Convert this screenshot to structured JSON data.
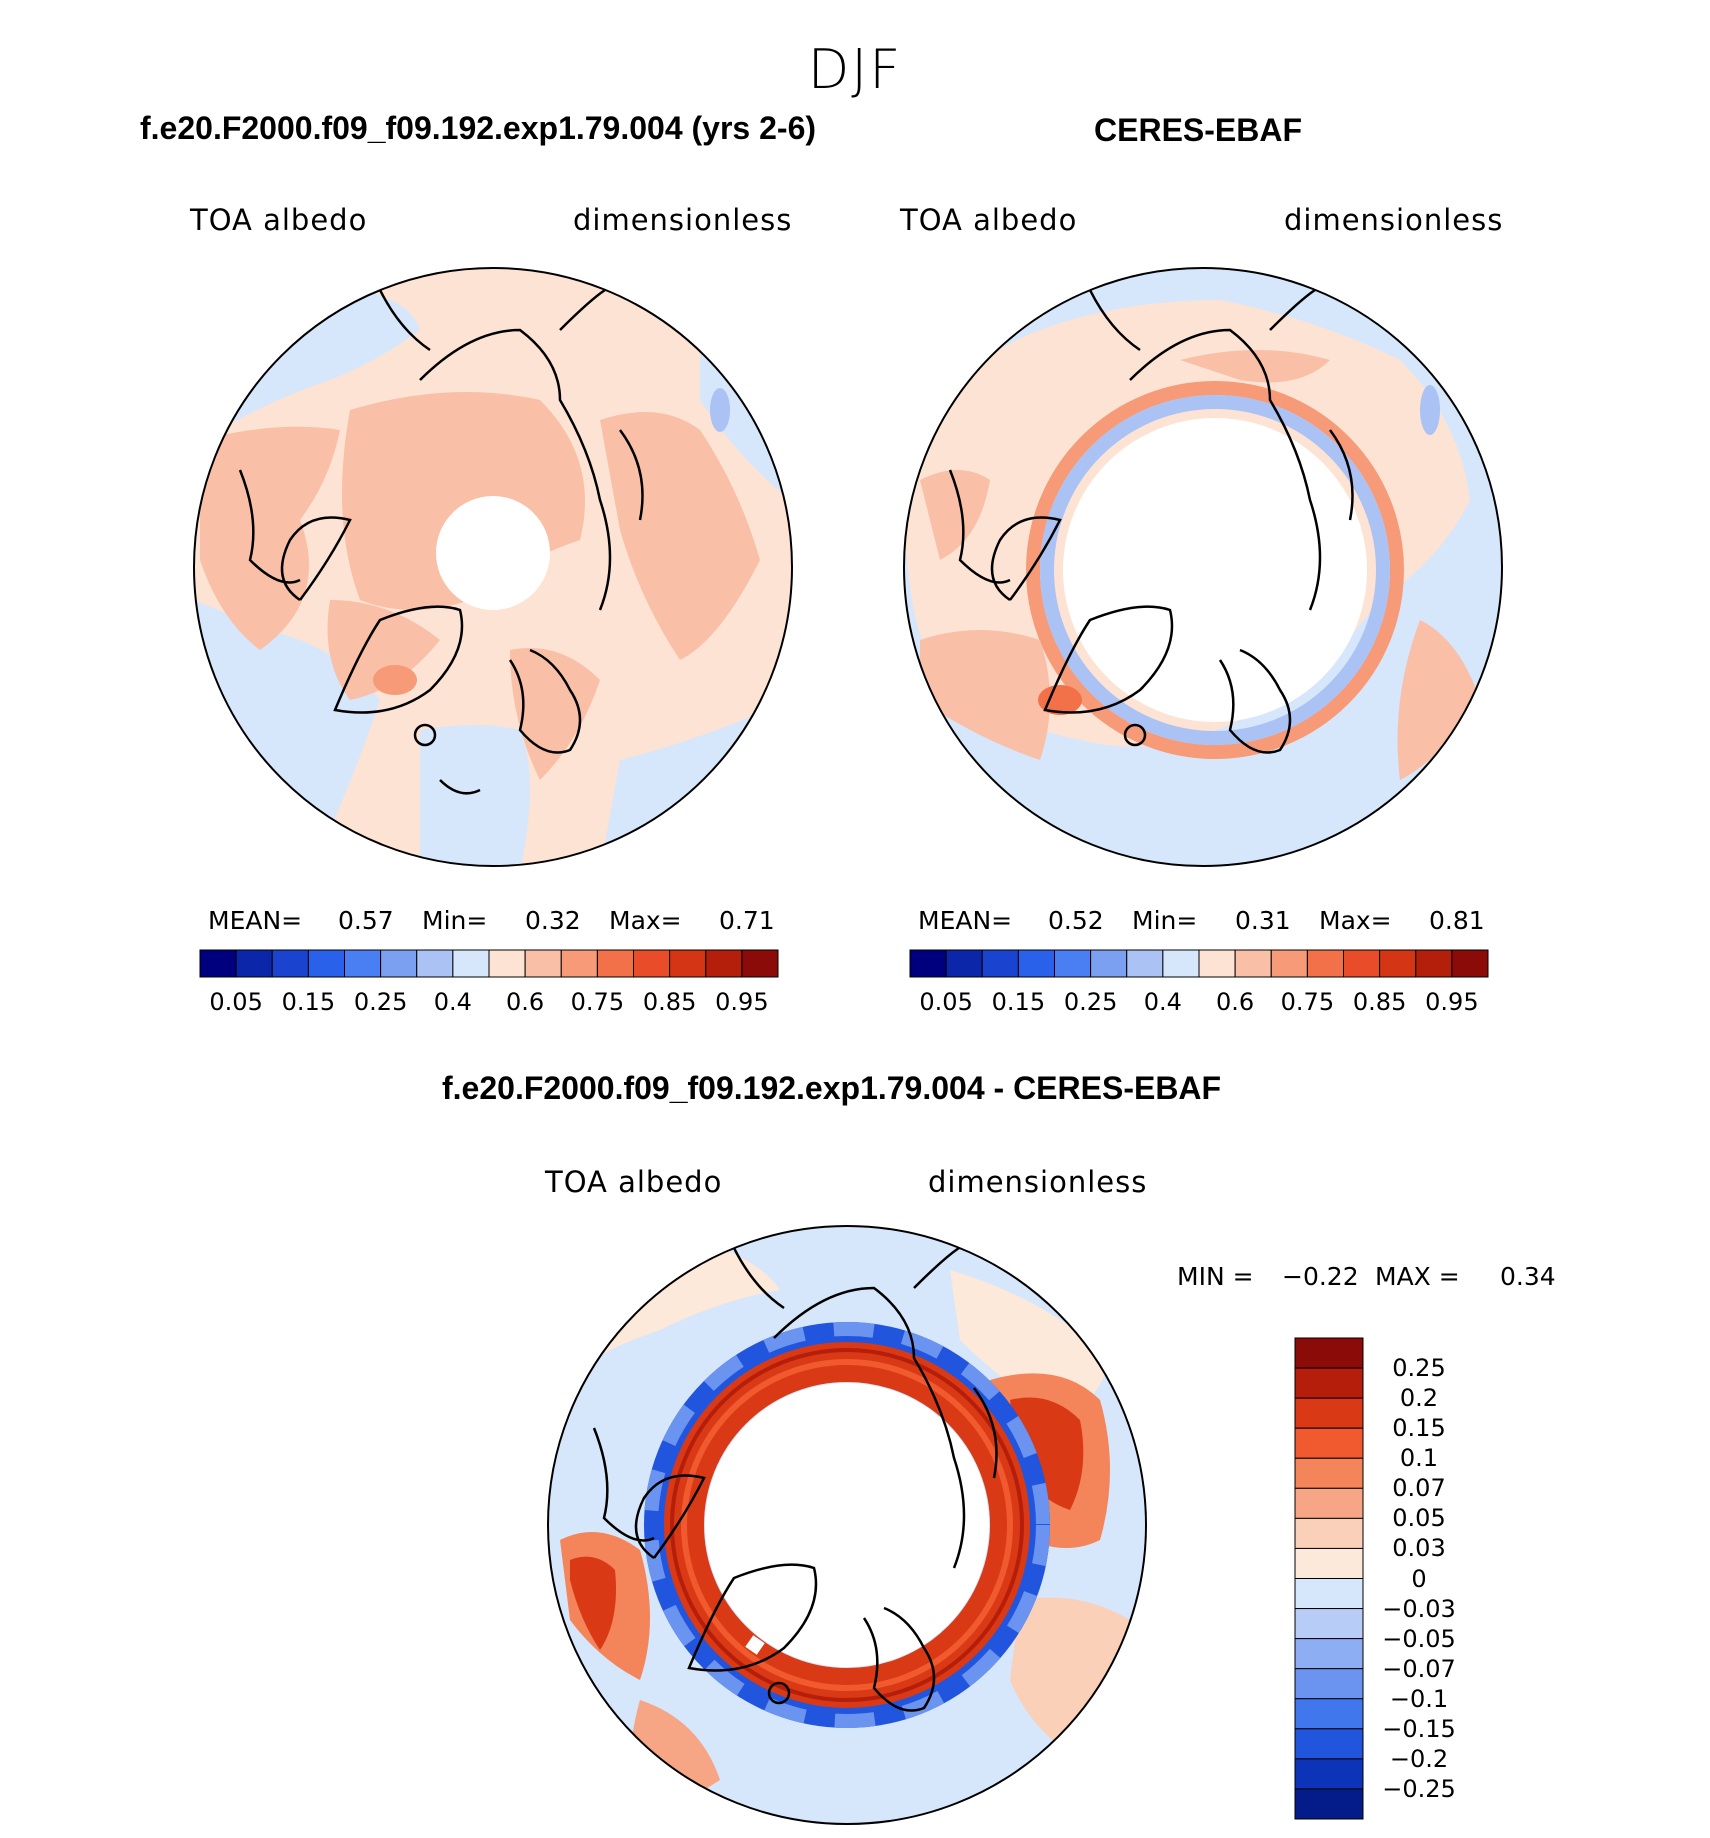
{
  "season": "DJF",
  "panels": [
    {
      "title": "f.e20.F2000.f09_f09.192.exp1.79.004 (yrs 2-6)",
      "variable": "TOA albedo",
      "units": "dimensionless",
      "stats": {
        "mean_label": "MEAN=",
        "mean": "0.57",
        "min_label": "Min=",
        "min": "0.32",
        "max_label": "Max=",
        "max": "0.71"
      }
    },
    {
      "title": "CERES-EBAF",
      "variable": "TOA albedo",
      "units": "dimensionless",
      "stats": {
        "mean_label": "MEAN=",
        "mean": "0.52",
        "min_label": "Min=",
        "min": "0.31",
        "max_label": "Max=",
        "max": "0.81"
      }
    },
    {
      "title": "f.e20.F2000.f09_f09.192.exp1.79.004 - CERES-EBAF",
      "variable": "TOA albedo",
      "units": "dimensionless",
      "stats": {
        "min_label": "MIN =",
        "min": "−0.22",
        "max_label": "MAX =",
        "max": "0.34"
      }
    }
  ],
  "colorbars": {
    "absolute": {
      "colors": [
        "#00007f",
        "#0b26a8",
        "#1a44cf",
        "#2a61ea",
        "#4a7ff4",
        "#7ba0f2",
        "#aac2f4",
        "#d6e6fb",
        "#fde3d4",
        "#f9c0a7",
        "#f69a78",
        "#f27149",
        "#e94c28",
        "#d43515",
        "#b31f0b",
        "#8a0b08"
      ],
      "tick_labels": [
        "0.05",
        "0.15",
        "0.25",
        "0.4",
        "0.6",
        "0.75",
        "0.85",
        "0.95"
      ]
    },
    "difference": {
      "colors": [
        "#8a0b08",
        "#b51e0b",
        "#d93914",
        "#f05a2e",
        "#f4845a",
        "#f6a684",
        "#fbd0b8",
        "#fde9da",
        "#d6e6fb",
        "#b7ccf6",
        "#8eaef4",
        "#6b94f0",
        "#4177ec",
        "#2255dd",
        "#0d33b8",
        "#031c8a"
      ],
      "tick_labels": [
        "0.25",
        "0.2",
        "0.15",
        "0.1",
        "0.07",
        "0.05",
        "0.03",
        "0",
        "−0.03",
        "−0.05",
        "−0.07",
        "−0.1",
        "−0.15",
        "−0.2",
        "−0.25"
      ]
    }
  }
}
